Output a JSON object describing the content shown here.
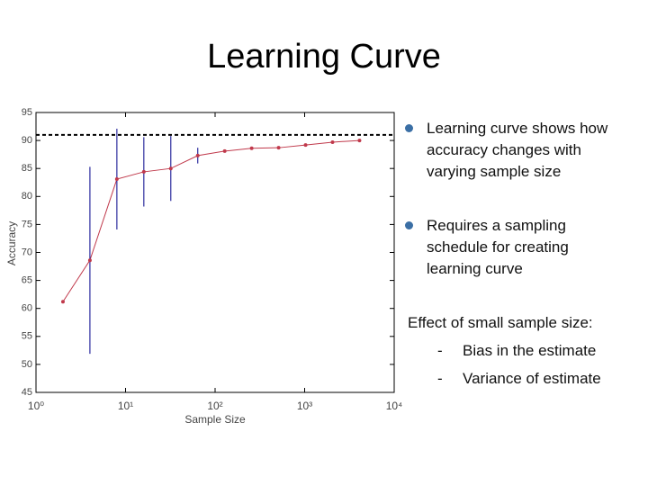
{
  "title": "Learning Curve",
  "bullets": [
    "Learning curve shows how accuracy changes with varying sample size",
    "Requires a sampling schedule for creating learning curve"
  ],
  "effect": {
    "heading": "Effect of small sample size:",
    "items": [
      "Bias in the estimate",
      "Variance of estimate"
    ]
  },
  "chart_data": {
    "type": "line",
    "x": [
      2,
      4,
      8,
      16,
      32,
      64,
      128,
      256,
      512,
      1024,
      2048,
      4096
    ],
    "values": [
      61.2,
      68.6,
      83.1,
      84.4,
      85.0,
      87.3,
      88.1,
      88.6,
      88.7,
      89.2,
      89.7,
      90.0
    ],
    "errors": [
      null,
      16.7,
      9.0,
      6.2,
      5.8,
      1.4,
      null,
      null,
      null,
      null,
      null,
      null
    ],
    "color": "#c0394b",
    "error_color": "#2b2b9e",
    "reference_line": 91,
    "xlabel": "Sample Size",
    "ylabel": "Accuracy",
    "xscale": "log",
    "xlim": [
      1,
      10000
    ],
    "xticks": [
      {
        "value": 1,
        "label": "10⁰"
      },
      {
        "value": 10,
        "label": "10¹"
      },
      {
        "value": 100,
        "label": "10²"
      },
      {
        "value": 1000,
        "label": "10³"
      },
      {
        "value": 10000,
        "label": "10⁴"
      }
    ],
    "ylim": [
      45,
      95
    ],
    "yticks": [
      45,
      50,
      55,
      60,
      65,
      70,
      75,
      80,
      85,
      90,
      95
    ]
  }
}
